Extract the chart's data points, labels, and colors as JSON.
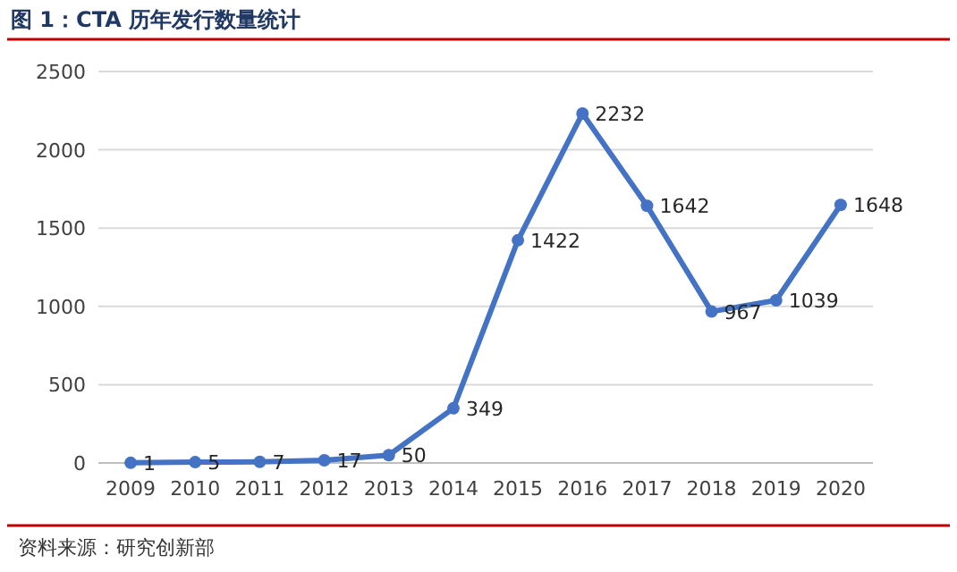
{
  "chart_data": {
    "type": "line",
    "title": "图 1：CTA 历年发行数量统计",
    "annotations": [
      "资料来源：研究创新部"
    ],
    "categories": [
      "2009",
      "2010",
      "2011",
      "2012",
      "2013",
      "2014",
      "2015",
      "2016",
      "2017",
      "2018",
      "2019",
      "2020"
    ],
    "series": [
      {
        "color": "#4472c4",
        "values": [
          1,
          5,
          7,
          17,
          50,
          349,
          1422,
          2232,
          1642,
          967,
          1039,
          1648
        ]
      }
    ],
    "ylim": [
      0,
      2500
    ],
    "yticks": [
      0,
      500,
      1000,
      1500,
      2000,
      2500
    ],
    "grid": "y",
    "marker": "circle",
    "line_style": "solid",
    "data_labels": true
  }
}
